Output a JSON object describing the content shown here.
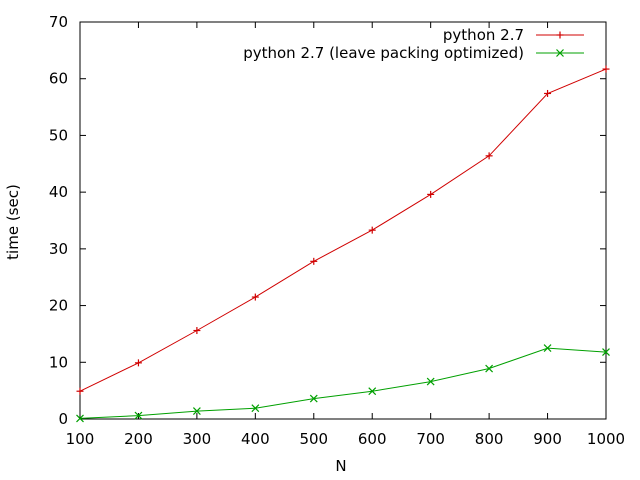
{
  "chart_data": {
    "type": "line",
    "title": "",
    "xlabel": "N",
    "ylabel": "time (sec)",
    "xlim": [
      100,
      1000
    ],
    "ylim": [
      0,
      70
    ],
    "xticks": [
      "100",
      "200",
      "300",
      "400",
      "500",
      "600",
      "700",
      "800",
      "900",
      "1000"
    ],
    "yticks": [
      "0",
      "10",
      "20",
      "30",
      "40",
      "50",
      "60",
      "70"
    ],
    "grid": false,
    "legend_position": "top-right",
    "x": [
      100,
      200,
      300,
      400,
      500,
      600,
      700,
      800,
      900,
      1000
    ],
    "series": [
      {
        "name": "python 2.7",
        "color": "#d00000",
        "marker": "plus",
        "values": [
          4.9,
          9.9,
          15.6,
          21.5,
          27.8,
          33.3,
          39.6,
          46.4,
          57.4,
          61.7
        ]
      },
      {
        "name": "python 2.7 (leave packing optimized)",
        "color": "#00a000",
        "marker": "cross",
        "values": [
          0.1,
          0.6,
          1.4,
          1.9,
          3.6,
          4.9,
          6.6,
          8.9,
          12.5,
          11.8
        ]
      }
    ]
  }
}
